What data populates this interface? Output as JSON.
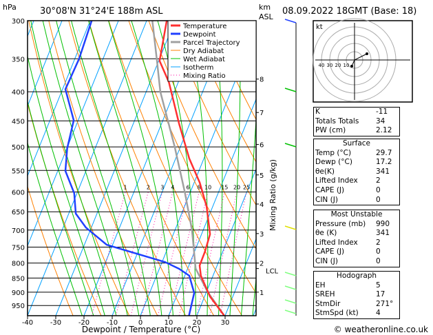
{
  "header": {
    "p_unit": "hPa",
    "location": "30°08'N  31°24'E  188m  ASL",
    "km_label": "km",
    "asl_label": "ASL",
    "datetime": "08.09.2022  18GMT  (Base: 18)"
  },
  "legend": [
    "Temperature",
    "Dewpoint",
    "Parcel Trajectory",
    "Dry Adiabat",
    "Wet Adiabat",
    "Isotherm",
    "Mixing Ratio"
  ],
  "colors": {
    "temperature": "#ff3030",
    "dewpoint": "#2040ff",
    "parcel": "#a0a0a0",
    "dry": "#ff8000",
    "wet": "#00c000",
    "iso": "#00a0ff",
    "mix": "#ff00a0"
  },
  "hodograph": {
    "unit": "kt",
    "ring_labels": [
      "10",
      "20",
      "30",
      "40"
    ]
  },
  "indices": {
    "rows": [
      [
        "K",
        "-11"
      ],
      [
        "Totals Totals",
        "34"
      ],
      [
        "PW (cm)",
        "2.12"
      ]
    ]
  },
  "surface": {
    "title": "Surface",
    "rows": [
      [
        "Temp (°C)",
        "29.7"
      ],
      [
        "Dewp (°C)",
        "17.2"
      ],
      [
        "θe(K)",
        "341"
      ],
      [
        "Lifted Index",
        "2"
      ],
      [
        "CAPE (J)",
        "0"
      ],
      [
        "CIN (J)",
        "0"
      ]
    ]
  },
  "most_unstable": {
    "title": "Most Unstable",
    "rows": [
      [
        "Pressure (mb)",
        "990"
      ],
      [
        "θe (K)",
        "341"
      ],
      [
        "Lifted Index",
        "2"
      ],
      [
        "CAPE (J)",
        "0"
      ],
      [
        "CIN (J)",
        "0"
      ]
    ]
  },
  "hodo_table": {
    "title": "Hodograph",
    "rows": [
      [
        "EH",
        "5"
      ],
      [
        "SREH",
        "17"
      ],
      [
        "StmDir",
        "271°"
      ],
      [
        "StmSpd (kt)",
        "4"
      ]
    ]
  },
  "copyright": "© weatheronline.co.uk",
  "chart_data": {
    "type": "skew-t",
    "title": "30°08'N 31°24'E 188m ASL",
    "xlabel": "Dewpoint / Temperature (°C)",
    "ylabel": "hPa",
    "y2label": "Mixing Ratio (g/kg)",
    "x_ticks": [
      -40,
      -30,
      -20,
      -10,
      0,
      10,
      20,
      30
    ],
    "p_ticks": [
      300,
      350,
      400,
      450,
      500,
      550,
      600,
      650,
      700,
      750,
      800,
      850,
      900,
      950
    ],
    "km_ticks": [
      {
        "km": "1",
        "p": 900
      },
      {
        "km": "2",
        "p": 800
      },
      {
        "km": "3",
        "p": 710
      },
      {
        "km": "4",
        "p": 630
      },
      {
        "km": "5",
        "p": 560
      },
      {
        "km": "6",
        "p": 495
      },
      {
        "km": "7",
        "p": 435
      },
      {
        "km": "8",
        "p": 380
      },
      {
        "km": "LCL",
        "p": 818
      }
    ],
    "mixing_ratios": [
      1,
      2,
      3,
      4,
      6,
      8,
      10,
      15,
      20,
      25
    ],
    "temperature": [
      [
        990,
        29.7
      ],
      [
        916,
        21.9
      ],
      [
        842,
        15.7
      ],
      [
        808,
        13.8
      ],
      [
        764,
        13.7
      ],
      [
        712,
        13.0
      ],
      [
        636,
        7.8
      ],
      [
        578,
        2.0
      ],
      [
        524,
        -5.2
      ],
      [
        455,
        -13.8
      ],
      [
        385,
        -23.3
      ],
      [
        353,
        -29.7
      ],
      [
        300,
        -32.9
      ]
    ],
    "dewpoint": [
      [
        990,
        17.2
      ],
      [
        903,
        15.8
      ],
      [
        842,
        11.6
      ],
      [
        819,
        7.0
      ],
      [
        797,
        1.1
      ],
      [
        743,
        -22.1
      ],
      [
        693,
        -31.9
      ],
      [
        655,
        -37.5
      ],
      [
        603,
        -41
      ],
      [
        551,
        -47.3
      ],
      [
        503,
        -49.9
      ],
      [
        449,
        -51.6
      ],
      [
        396,
        -59
      ],
      [
        350,
        -58.5
      ],
      [
        300,
        -59.5
      ]
    ],
    "parcel": [
      [
        990,
        29.7
      ],
      [
        900,
        20.5
      ],
      [
        818,
        12.8
      ],
      [
        700,
        6
      ],
      [
        600,
        -2
      ],
      [
        500,
        -12
      ],
      [
        400,
        -25
      ],
      [
        350,
        -31
      ],
      [
        300,
        -38
      ]
    ]
  }
}
